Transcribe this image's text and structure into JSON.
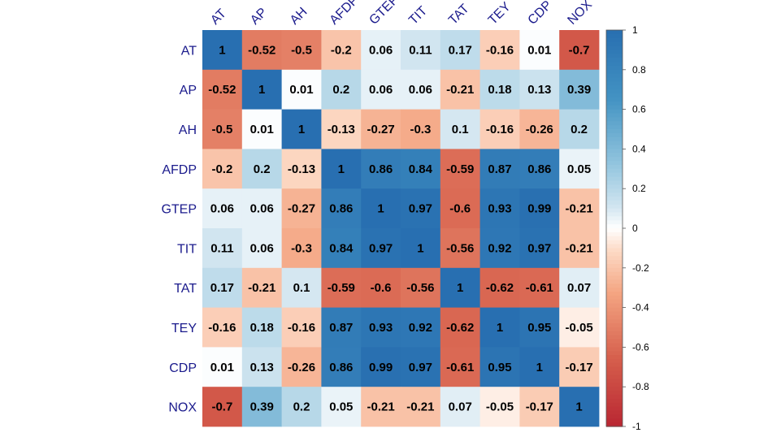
{
  "chart_data": {
    "type": "heatmap",
    "title": "",
    "variables": [
      "AT",
      "AP",
      "AH",
      "AFDP",
      "GTEP",
      "TIT",
      "TAT",
      "TEY",
      "CDP",
      "NOX"
    ],
    "matrix": [
      [
        1,
        -0.52,
        -0.5,
        -0.2,
        0.06,
        0.11,
        0.17,
        -0.16,
        0.01,
        -0.7
      ],
      [
        -0.52,
        1,
        0.01,
        0.2,
        0.06,
        0.06,
        -0.21,
        0.18,
        0.13,
        0.39
      ],
      [
        -0.5,
        0.01,
        1,
        -0.13,
        -0.27,
        -0.3,
        0.1,
        -0.16,
        -0.26,
        0.2
      ],
      [
        -0.2,
        0.2,
        -0.13,
        1,
        0.86,
        0.84,
        -0.59,
        0.87,
        0.86,
        0.05
      ],
      [
        0.06,
        0.06,
        -0.27,
        0.86,
        1,
        0.97,
        -0.6,
        0.93,
        0.99,
        -0.21
      ],
      [
        0.11,
        0.06,
        -0.3,
        0.84,
        0.97,
        1,
        -0.56,
        0.92,
        0.97,
        -0.21
      ],
      [
        0.17,
        -0.21,
        0.1,
        -0.59,
        -0.6,
        -0.56,
        1,
        -0.62,
        -0.61,
        0.07
      ],
      [
        -0.16,
        0.18,
        -0.16,
        0.87,
        0.93,
        0.92,
        -0.62,
        1,
        0.95,
        -0.05
      ],
      [
        0.01,
        0.13,
        -0.26,
        0.86,
        0.99,
        0.97,
        -0.61,
        0.95,
        1,
        -0.17
      ],
      [
        -0.7,
        0.39,
        0.2,
        0.05,
        -0.21,
        -0.21,
        0.07,
        -0.05,
        -0.17,
        1
      ]
    ],
    "color_scale": {
      "range": [
        -1,
        1
      ],
      "low_color": "#B2182B",
      "mid_color": "#FFFFFF",
      "high_color": "#2166AC",
      "ticks": [
        "1",
        "0.8",
        "0.6",
        "0.4",
        "0.2",
        "0",
        "-0.2",
        "-0.4",
        "-0.6",
        "-0.8",
        "-1"
      ]
    },
    "label_color": "#1A1A8C",
    "legend_position": "right"
  }
}
